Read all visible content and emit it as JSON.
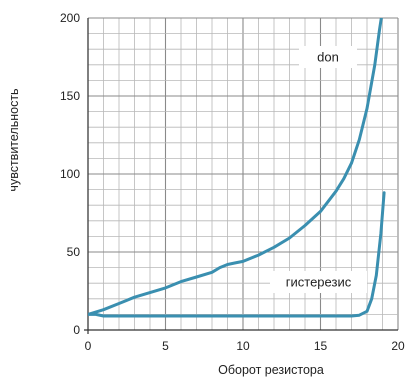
{
  "chart_data": {
    "type": "line",
    "xlabel": "Оборот резистора",
    "ylabel": "чувствительность",
    "xlim": [
      0,
      20
    ],
    "ylim": [
      0,
      200
    ],
    "x_ticks": [
      "0",
      "5",
      "10",
      "15",
      "20"
    ],
    "y_ticks": [
      "0",
      "50",
      "100",
      "150",
      "200"
    ],
    "grid": true,
    "series": [
      {
        "name": "don",
        "color": "#3a8fb0",
        "x": [
          0,
          1,
          2,
          3,
          4,
          5,
          6,
          7,
          8,
          8.5,
          9,
          9.5,
          10,
          11,
          12,
          13,
          14,
          15,
          16,
          16.5,
          17,
          17.5,
          18,
          18.5,
          18.8,
          19
        ],
        "y": [
          10,
          13,
          17,
          21,
          24,
          27,
          31,
          34,
          37,
          40,
          42,
          43,
          44,
          48,
          53,
          59,
          67,
          76,
          89,
          97,
          107,
          122,
          142,
          170,
          192,
          205
        ]
      },
      {
        "name": "гистерезис",
        "color": "#3a8fb0",
        "x": [
          0,
          0.5,
          1,
          2,
          4,
          6,
          8,
          10,
          12,
          14,
          16,
          17,
          17.5,
          18,
          18.3,
          18.6,
          18.9,
          19.1
        ],
        "y": [
          10,
          10,
          9,
          9,
          9,
          9,
          9,
          9,
          9,
          9,
          9,
          9,
          9.5,
          12,
          20,
          35,
          62,
          88
        ]
      }
    ],
    "annotations": [
      {
        "text": "don",
        "series": "don"
      },
      {
        "text": "гистерезис",
        "series": "гистерезис"
      }
    ]
  }
}
